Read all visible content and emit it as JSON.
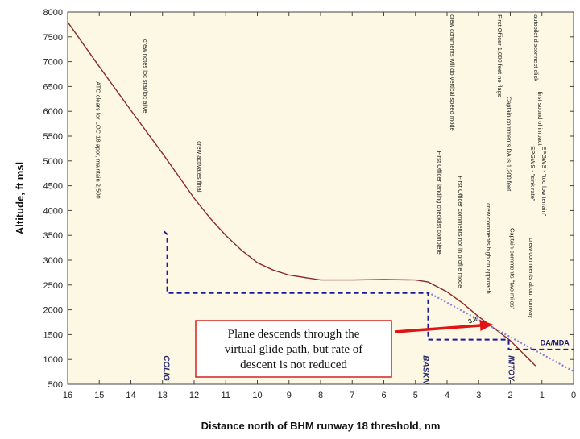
{
  "chart_data": {
    "type": "line",
    "xlabel": "Distance north of BHM runway 18 threshold, nm",
    "ylabel": "Altitude, ft msl",
    "xlim": [
      16,
      0
    ],
    "ylim": [
      500,
      8000
    ],
    "x_ticks": [
      "16",
      "15",
      "14",
      "13",
      "12",
      "11",
      "10",
      "9",
      "8",
      "7",
      "6",
      "5",
      "4",
      "3",
      "2",
      "1",
      "0"
    ],
    "y_ticks": [
      "500",
      "1000",
      "1500",
      "2000",
      "2500",
      "3000",
      "3500",
      "4000",
      "4500",
      "5000",
      "5500",
      "6000",
      "6500",
      "7000",
      "7500",
      "8000"
    ],
    "grid": false,
    "background_color": "#fdf8e3",
    "series": [
      {
        "color": "#8b2a2a",
        "style": "solid",
        "points": [
          [
            16,
            7800
          ],
          [
            15,
            6900
          ],
          [
            14,
            6020
          ],
          [
            13,
            5150
          ],
          [
            12,
            4250
          ],
          [
            11.5,
            3850
          ],
          [
            11,
            3500
          ],
          [
            10.5,
            3200
          ],
          [
            10,
            2950
          ],
          [
            9.5,
            2800
          ],
          [
            9,
            2700
          ],
          [
            8,
            2600
          ],
          [
            7,
            2600
          ],
          [
            6,
            2610
          ],
          [
            5,
            2600
          ],
          [
            4.6,
            2560
          ],
          [
            4,
            2360
          ],
          [
            3.5,
            2130
          ],
          [
            3,
            1860
          ],
          [
            2.5,
            1620
          ],
          [
            2,
            1380
          ],
          [
            1.5,
            1060
          ],
          [
            1.2,
            870
          ]
        ]
      },
      {
        "color": "#8a82e0",
        "style": "dotted",
        "points": [
          [
            4.6,
            2350
          ],
          [
            0,
            760
          ]
        ]
      },
      {
        "color": "#1a1a9a",
        "style": "dashed",
        "points": [
          [
            12.95,
            3580
          ],
          [
            12.85,
            3520
          ],
          [
            12.85,
            2340
          ],
          [
            4.6,
            2340
          ],
          [
            4.6,
            1400
          ],
          [
            2.05,
            1400
          ],
          [
            2.05,
            1200
          ],
          [
            0,
            1200
          ]
        ]
      }
    ],
    "fixes": [
      {
        "name": "COLIG",
        "x": 12.9
      },
      {
        "name": "BASKN",
        "x": 4.7
      },
      {
        "name": "IMTOY",
        "x": 2.0
      }
    ],
    "labels": {
      "da_mda": "DA/MDA",
      "glide_path": "3.2°"
    },
    "annotations": [
      {
        "text": "ATC clears for LOC 18 appr, maintain 2,500",
        "x": 15.1,
        "y_top": 6600
      },
      {
        "text": "crew notes loc star/loc alive",
        "x": 13.6,
        "y_top": 7450
      },
      {
        "text": "crew activates final",
        "x": 11.9,
        "y_top": 5400
      },
      {
        "text": "crew comments will do vertical speed mode",
        "x": 3.9,
        "y_top": 7950
      },
      {
        "text": "First Officer landing checklist complete",
        "x": 4.3,
        "y_top": 5200
      },
      {
        "text": "First Officer comments not in profile mode",
        "x": 3.65,
        "y_top": 4700
      },
      {
        "text": "crew comments high on approach",
        "x": 2.75,
        "y_top": 4150
      },
      {
        "text": "First Officer 1,000 feet no flags",
        "x": 2.4,
        "y_top": 7950
      },
      {
        "text": "Captain comments DA is 1,200 feet",
        "x": 2.1,
        "y_top": 6300
      },
      {
        "text": "Captain comments \"two miles\"",
        "x": 2.0,
        "y_top": 3650
      },
      {
        "text": "autopilot disconnect click",
        "x": 1.25,
        "y_top": 7950
      },
      {
        "text": "first sound of impact",
        "x": 1.12,
        "y_top": 6400
      },
      {
        "text": "EPGWS - \"too low terrain\"",
        "x": 1.0,
        "y_top": 5300
      },
      {
        "text": "EPGWS - \"sink rate\"",
        "x": 1.35,
        "y_top": 5300
      },
      {
        "text": "crew comments about runway",
        "x": 1.4,
        "y_top": 3450
      }
    ],
    "callout": {
      "lines": [
        "Plane descends through the",
        "virtual glide path, but rate of",
        "descent is not reduced"
      ],
      "border_color": "#d32020",
      "arrow_color": "#e01414"
    }
  }
}
